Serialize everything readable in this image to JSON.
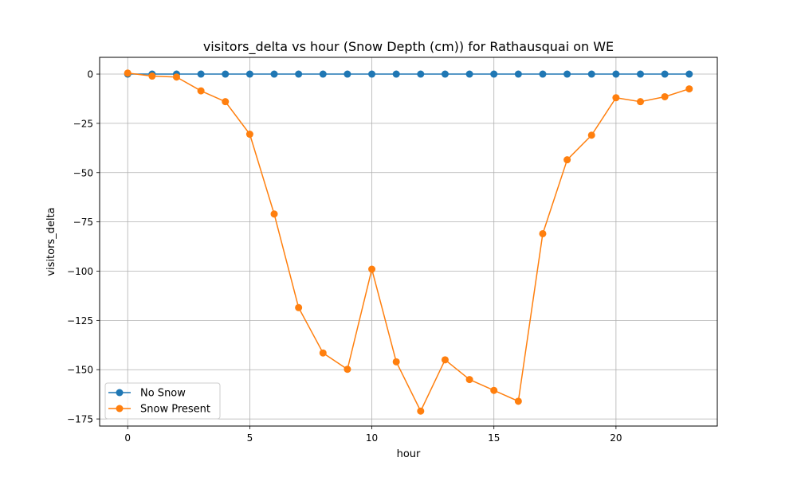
{
  "chart_data": {
    "type": "line",
    "title": "visitors_delta vs hour (Snow Depth (cm)) for Rathausquai on WE",
    "xlabel": "hour",
    "ylabel": "visitors_delta",
    "xlim": [
      -1.15,
      24.15
    ],
    "ylim": [
      -178.6,
      8.5
    ],
    "x_ticks": [
      0,
      5,
      10,
      15,
      20
    ],
    "y_ticks": [
      0,
      -25,
      -50,
      -75,
      -100,
      -125,
      -150,
      -175
    ],
    "y_tick_labels": [
      "0",
      "−25",
      "−50",
      "−75",
      "−100",
      "−125",
      "−150",
      "−175"
    ],
    "grid": true,
    "legend_position": "lower-left",
    "x": [
      0,
      1,
      2,
      3,
      4,
      5,
      6,
      7,
      8,
      9,
      10,
      11,
      12,
      13,
      14,
      15,
      16,
      17,
      18,
      19,
      20,
      21,
      22,
      23
    ],
    "series": [
      {
        "name": "No Snow",
        "color": "#1f77b4",
        "marker": "circle",
        "values": [
          0,
          0,
          0,
          0,
          0,
          0,
          0,
          0,
          0,
          0,
          0,
          0,
          0,
          0,
          0,
          0,
          0,
          0,
          0,
          0,
          0,
          0,
          0,
          0
        ]
      },
      {
        "name": "Snow Present",
        "color": "#ff7f0e",
        "marker": "circle",
        "values": [
          0.5,
          -1,
          -1.5,
          -8.5,
          -14,
          -30.5,
          -71,
          -118.5,
          -141.5,
          -149.8,
          -99,
          -146,
          -171,
          -145,
          -155,
          -160.5,
          -166,
          -81,
          -43.5,
          -31,
          -12,
          -14,
          -11.5,
          -7.5
        ]
      }
    ]
  }
}
